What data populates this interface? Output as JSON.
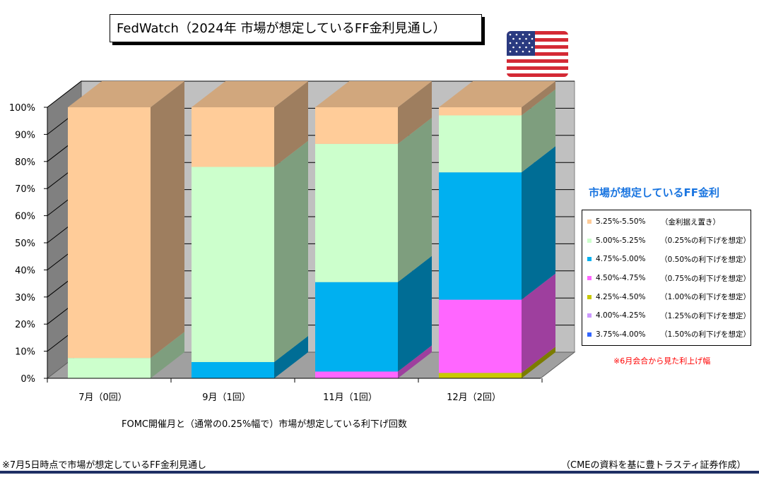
{
  "header": {
    "title": "FedWatch（2024年 市場が想定しているFF金利見通し）"
  },
  "legend": {
    "title": "市場が想定しているFF金利",
    "items": [
      {
        "range": "5.25%-5.50%",
        "note": "（金利据え置き）",
        "color": "#ffcc99"
      },
      {
        "range": "5.00%-5.25%",
        "note": "（0.25%の利下げを想定）",
        "color": "#ccffcc"
      },
      {
        "range": "4.75%-5.00%",
        "note": "（0.50%の利下げを想定）",
        "color": "#00b0f0"
      },
      {
        "range": "4.50%-4.75%",
        "note": "（0.75%の利下げを想定）",
        "color": "#ff66ff"
      },
      {
        "range": "4.25%-4.50%",
        "note": "（1.00%の利下げを想定）",
        "color": "#c8c800"
      },
      {
        "range": "4.00%-4.25%",
        "note": "（1.25%の利下げを想定）",
        "color": "#cc99ff"
      },
      {
        "range": "3.75%-4.00%",
        "note": "（1.50%の利下げを想定）",
        "color": "#3366ff"
      }
    ],
    "note": "※6月会合から見た利上げ幅"
  },
  "chart_data": {
    "type": "bar",
    "stacked": true,
    "style": "3d",
    "categories": [
      "7月（0回）",
      "9月（1回）",
      "11月（1回）",
      "12月（2回）"
    ],
    "xlabel": "FOMC開催月と（通常の0.25%幅で）市場が想定している利下げ回数",
    "ylabel": "",
    "ylim": [
      0,
      100
    ],
    "yticks": [
      "0%",
      "10%",
      "20%",
      "30%",
      "40%",
      "50%",
      "60%",
      "70%",
      "80%",
      "90%",
      "100%"
    ],
    "series": [
      {
        "name": "3.75%-4.00%",
        "values": [
          0,
          0,
          0,
          0
        ]
      },
      {
        "name": "4.00%-4.25%",
        "values": [
          0,
          0,
          0,
          0
        ]
      },
      {
        "name": "4.25%-4.50%",
        "values": [
          0,
          0,
          0,
          2
        ]
      },
      {
        "name": "4.50%-4.75%",
        "values": [
          0,
          0,
          2.5,
          27
        ]
      },
      {
        "name": "4.75%-5.00%",
        "values": [
          0,
          6,
          33,
          47
        ]
      },
      {
        "name": "5.00%-5.25%",
        "values": [
          7.5,
          72,
          51,
          21
        ]
      },
      {
        "name": "5.25%-5.50%",
        "values": [
          92.5,
          22,
          13.5,
          3
        ]
      }
    ],
    "grid": true,
    "legend": "right"
  },
  "footer": {
    "footnote": "※7月5日時点で市場が想定しているFF金利見通し",
    "source": "（CMEの資料を基に豊トラスティ証券作成）"
  }
}
